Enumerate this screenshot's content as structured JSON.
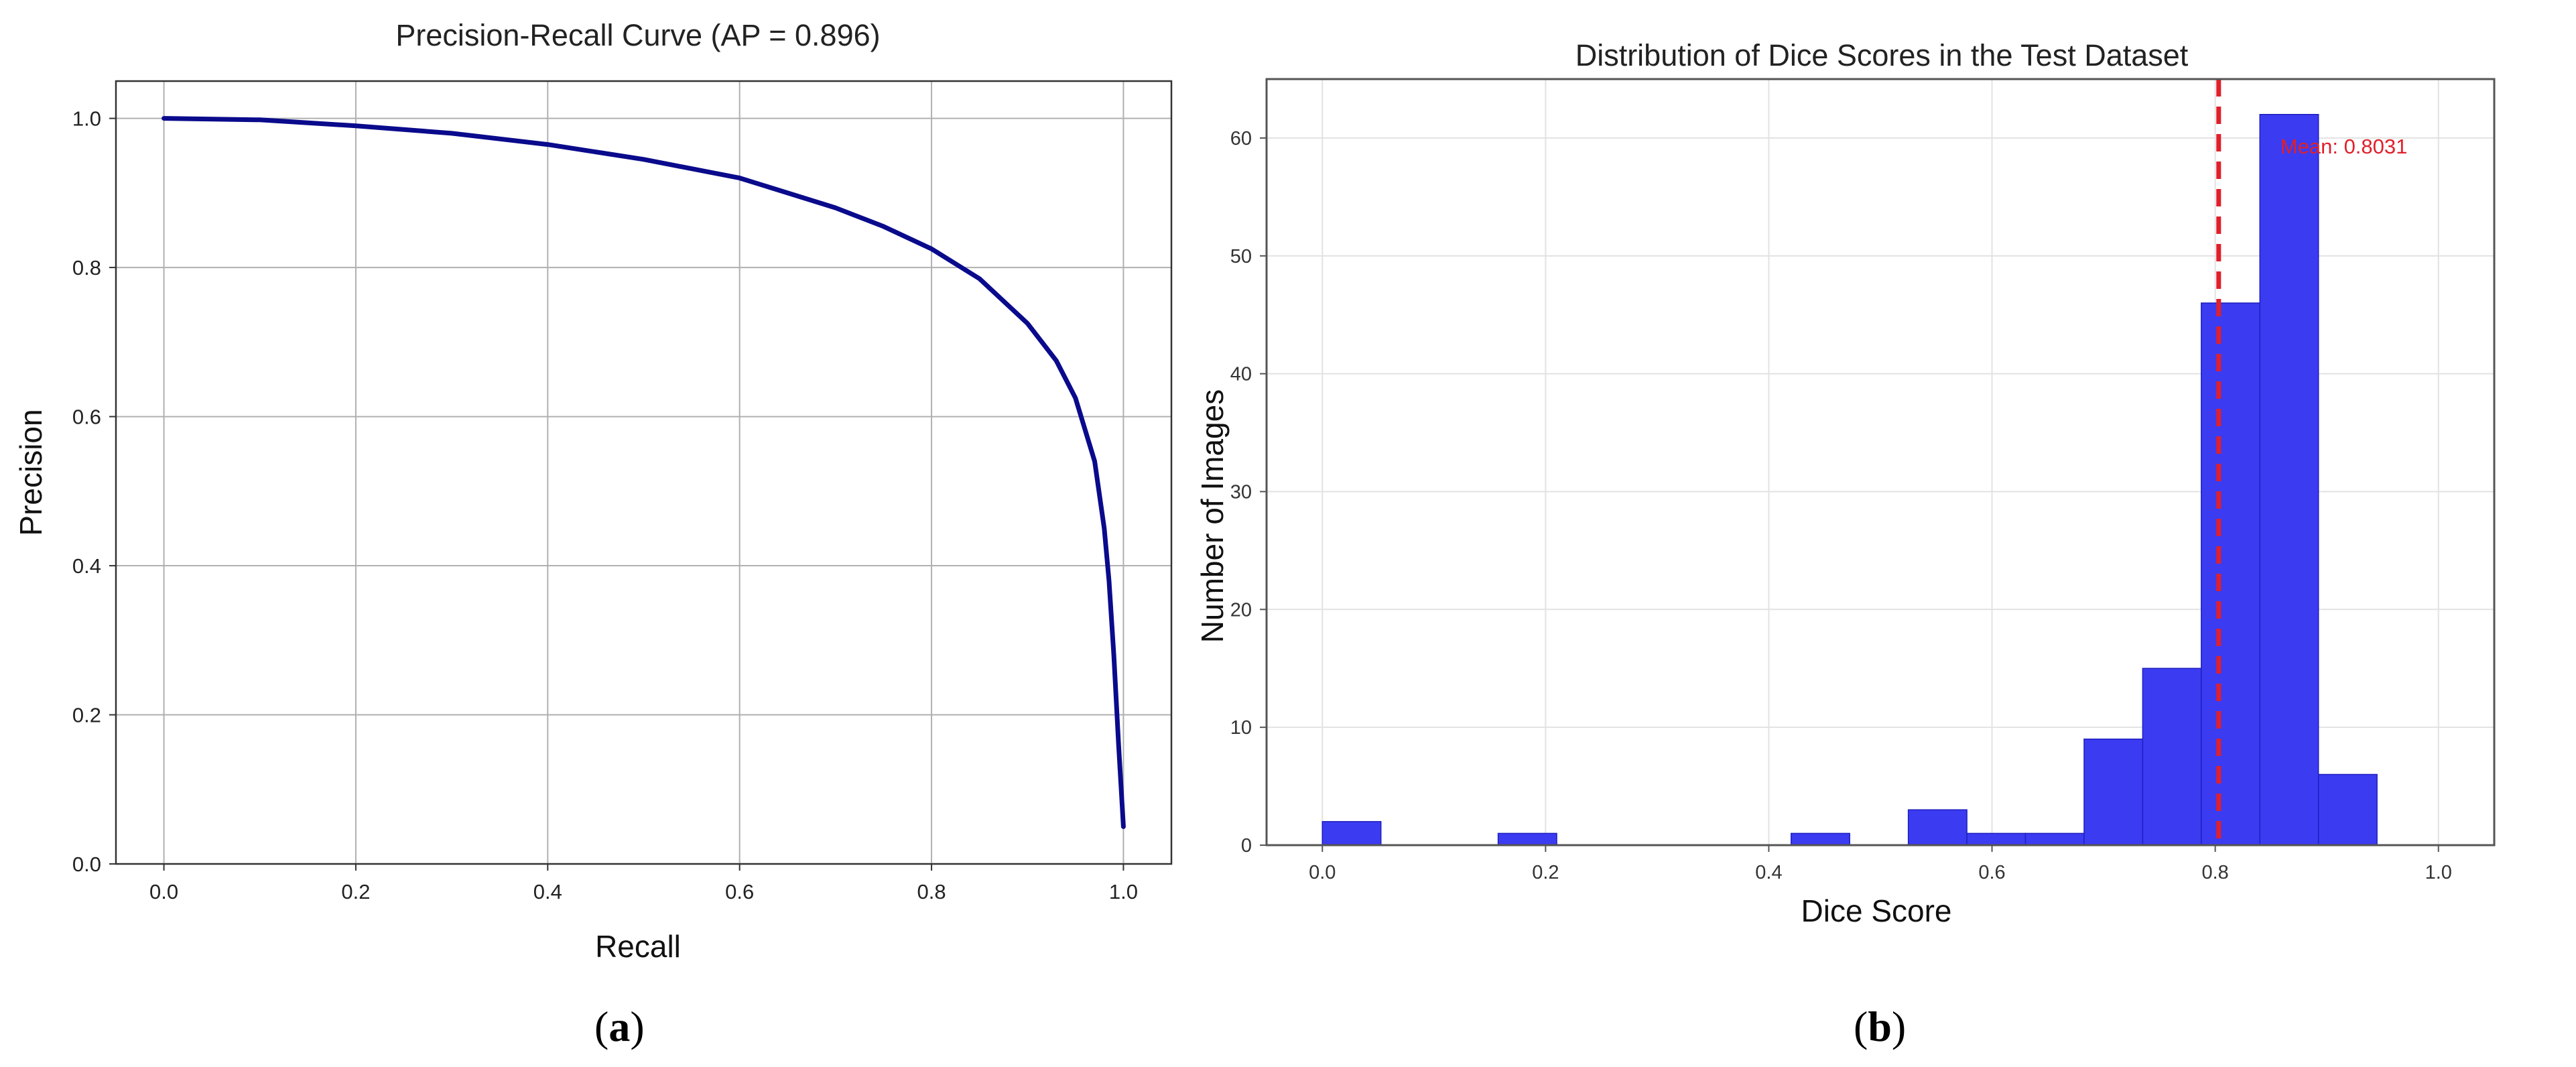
{
  "captions": {
    "a": "a",
    "b": "b"
  },
  "colors": {
    "pr_curve": "#0a0a8c",
    "hist_bar": "#3b3bf2",
    "mean_line": "#e0202a",
    "mean_text": "#e0202a"
  },
  "chart_data": [
    {
      "type": "line",
      "title": "Precision-Recall Curve (AP = 0.896)",
      "xlabel": "Recall",
      "ylabel": "Precision",
      "xlim": [
        -0.05,
        1.05
      ],
      "ylim": [
        0,
        1.05
      ],
      "xticks": [
        "0.0",
        "0.2",
        "0.4",
        "0.6",
        "0.8",
        "1.0"
      ],
      "yticks": [
        "0.0",
        "0.2",
        "0.4",
        "0.6",
        "0.8",
        "1.0"
      ],
      "grid": true,
      "series": [
        {
          "x": [
            0.0,
            0.1,
            0.2,
            0.3,
            0.4,
            0.5,
            0.6,
            0.7,
            0.75,
            0.8,
            0.85,
            0.9,
            0.93,
            0.95,
            0.97,
            0.98,
            0.985,
            0.99,
            0.995,
            1.0
          ],
          "y": [
            1.0,
            0.998,
            0.99,
            0.98,
            0.965,
            0.945,
            0.92,
            0.88,
            0.855,
            0.825,
            0.785,
            0.725,
            0.675,
            0.625,
            0.54,
            0.45,
            0.38,
            0.28,
            0.16,
            0.05
          ]
        }
      ]
    },
    {
      "type": "bar",
      "title": "Distribution of Dice Scores in the Test Dataset",
      "xlabel": "Dice Score",
      "ylabel": "Number of Images",
      "xlim": [
        -0.05,
        1.05
      ],
      "ylim": [
        0,
        65
      ],
      "xticks": [
        "0.0",
        "0.2",
        "0.4",
        "0.6",
        "0.8",
        "1.0"
      ],
      "yticks": [
        "0",
        "10",
        "20",
        "30",
        "40",
        "50",
        "60"
      ],
      "grid": true,
      "bin_width": 0.0525,
      "bins": [
        {
          "x0": 0.0,
          "count": 2
        },
        {
          "x0": 0.1575,
          "count": 1
        },
        {
          "x0": 0.42,
          "count": 1
        },
        {
          "x0": 0.525,
          "count": 3
        },
        {
          "x0": 0.5775,
          "count": 1
        },
        {
          "x0": 0.63,
          "count": 1
        },
        {
          "x0": 0.6825,
          "count": 9
        },
        {
          "x0": 0.735,
          "count": 15
        },
        {
          "x0": 0.7875,
          "count": 46
        },
        {
          "x0": 0.84,
          "count": 62
        },
        {
          "x0": 0.8925,
          "count": 6
        }
      ],
      "mean_value": 0.8031,
      "mean_label": "Mean: 0.8031"
    }
  ]
}
